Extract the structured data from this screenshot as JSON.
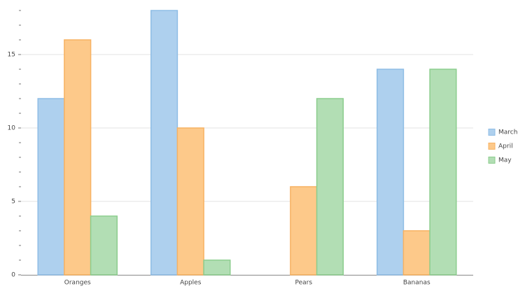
{
  "chart_data": {
    "type": "bar",
    "categories": [
      "Oranges",
      "Apples",
      "Pears",
      "Bananas"
    ],
    "series": [
      {
        "name": "March",
        "color": "#aed0ee",
        "stroke": "#8fbde5",
        "values": [
          12,
          18,
          0,
          14
        ]
      },
      {
        "name": "April",
        "color": "#fdc98a",
        "stroke": "#f7b263",
        "values": [
          16,
          10,
          6,
          3
        ]
      },
      {
        "name": "May",
        "color": "#b2deb4",
        "stroke": "#8ccd8e",
        "values": [
          4,
          1,
          12,
          14
        ]
      }
    ],
    "ylim": [
      0,
      18
    ],
    "yticks": [
      0,
      5,
      10,
      15
    ],
    "yminorticks": [
      1,
      2,
      3,
      4,
      6,
      7,
      8,
      9,
      11,
      12,
      13,
      14,
      16,
      17,
      18
    ],
    "grid": true,
    "legend": "right"
  }
}
